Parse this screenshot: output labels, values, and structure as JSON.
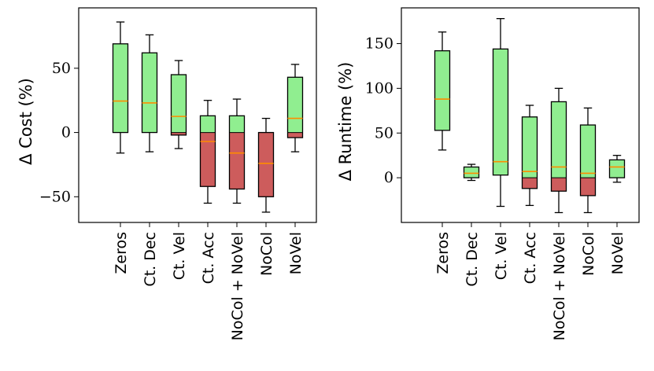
{
  "chart_data": [
    {
      "type": "box",
      "title": "",
      "xlabel": "",
      "ylabel": "Δ Cost (%)",
      "ylim": [
        -70,
        97
      ],
      "yticks": [
        -50,
        0,
        50
      ],
      "ytick_labels": [
        "−50",
        "0",
        "50"
      ],
      "categories": [
        "Zeros",
        "Ct. Dec",
        "Ct. Vel",
        "Ct. Acc",
        "NoCol + NoVel",
        "NoCol",
        "NoVel"
      ],
      "boxes": [
        {
          "q1": 0,
          "median": 24.5,
          "q3": 69,
          "whisker_low": -16,
          "whisker_high": 86
        },
        {
          "q1": 0,
          "median": 23,
          "q3": 62,
          "whisker_low": -15,
          "whisker_high": 76
        },
        {
          "q1": -2,
          "median": 12.5,
          "q3": 45,
          "whisker_low": -12.5,
          "whisker_high": 56
        },
        {
          "q1": -42,
          "median": -7,
          "q3": 13,
          "whisker_low": -55,
          "whisker_high": 25
        },
        {
          "q1": -44,
          "median": -16,
          "q3": 13,
          "whisker_low": -55,
          "whisker_high": 26
        },
        {
          "q1": -50,
          "median": -24,
          "q3": 0,
          "whisker_low": -62,
          "whisker_high": 11
        },
        {
          "q1": -4,
          "median": 11,
          "q3": 43,
          "whisker_low": -15,
          "whisker_high": 53
        }
      ],
      "colors": {
        "positive": "#90ee90",
        "negative": "#cd5c5c",
        "median": "#ff8c00",
        "edge": "#000000"
      }
    },
    {
      "type": "box",
      "title": "",
      "xlabel": "",
      "ylabel": "Δ Runtime (%)",
      "ylim": [
        -50,
        190
      ],
      "yticks": [
        0,
        50,
        100,
        150
      ],
      "ytick_labels": [
        "0",
        "50",
        "100",
        "150"
      ],
      "categories": [
        "Zeros",
        "Ct. Dec",
        "Ct. Vel",
        "Ct. Acc",
        "NoCol + NoVel",
        "NoCol",
        "NoVel"
      ],
      "boxes": [
        {
          "q1": 53,
          "median": 88,
          "q3": 142,
          "whisker_low": 31,
          "whisker_high": 163
        },
        {
          "q1": 0,
          "median": 5,
          "q3": 12,
          "whisker_low": -3,
          "whisker_high": 15
        },
        {
          "q1": 3,
          "median": 18,
          "q3": 144,
          "whisker_low": -32,
          "whisker_high": 178
        },
        {
          "q1": -12,
          "median": 7,
          "q3": 68,
          "whisker_low": -31,
          "whisker_high": 81
        },
        {
          "q1": -15,
          "median": 12,
          "q3": 85,
          "whisker_low": -39,
          "whisker_high": 100
        },
        {
          "q1": -20,
          "median": 5,
          "q3": 59,
          "whisker_low": -39,
          "whisker_high": 78
        },
        {
          "q1": 0,
          "median": 12,
          "q3": 20,
          "whisker_low": -5,
          "whisker_high": 25
        }
      ],
      "colors": {
        "positive": "#90ee90",
        "negative": "#cd5c5c",
        "median": "#ff8c00",
        "edge": "#000000"
      }
    }
  ]
}
